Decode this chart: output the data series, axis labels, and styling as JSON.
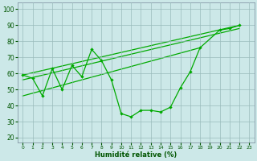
{
  "bg_color": "#cce8e8",
  "grid_color": "#99bbbb",
  "line_color": "#00aa00",
  "xlabel": "Humidité relative (%)",
  "ylabel_ticks": [
    20,
    30,
    40,
    50,
    60,
    70,
    80,
    90,
    100
  ],
  "xlim": [
    -0.5,
    23.5
  ],
  "ylim": [
    17,
    104
  ],
  "xtick_labels": [
    "0",
    "1",
    "2",
    "3",
    "4",
    "5",
    "6",
    "7",
    "8",
    "9",
    "10",
    "11",
    "12",
    "13",
    "14",
    "15",
    "16",
    "17",
    "18",
    "19",
    "20",
    "21",
    "22",
    "23"
  ],
  "main_x": [
    0,
    1,
    2,
    3,
    4,
    5,
    6,
    7,
    8,
    9,
    10,
    11,
    12,
    13,
    14,
    15,
    16,
    17,
    18,
    20,
    21,
    22
  ],
  "main_y": [
    59,
    57,
    46,
    63,
    50,
    65,
    58,
    75,
    68,
    56,
    35,
    33,
    37,
    37,
    36,
    39,
    51,
    61,
    76,
    87,
    88,
    90
  ],
  "trend1_x": [
    0,
    22
  ],
  "trend1_y": [
    59,
    90
  ],
  "trend2_x": [
    0,
    22
  ],
  "trend2_y": [
    56,
    88
  ],
  "trend3_x": [
    0,
    18
  ],
  "trend3_y": [
    46,
    76
  ]
}
